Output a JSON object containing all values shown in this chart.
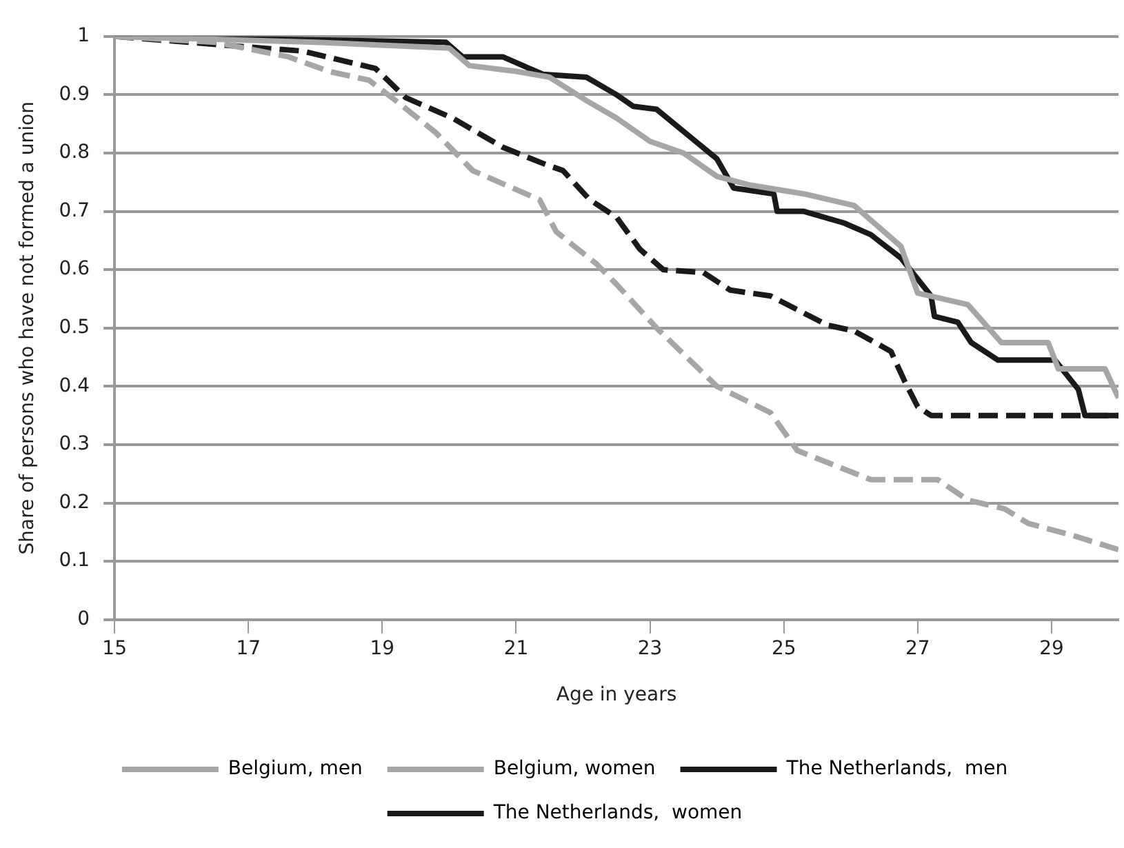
{
  "chart_data": {
    "type": "line",
    "xlabel": "Age in years",
    "ylabel": "Share of persons who have not formed a union",
    "xlim": [
      15,
      30
    ],
    "xticks": [
      15,
      17,
      19,
      21,
      23,
      25,
      27,
      29
    ],
    "ylim": [
      0,
      1
    ],
    "yticks": [
      0,
      0.1,
      0.2,
      0.3,
      0.4,
      0.5,
      0.6,
      0.7,
      0.8,
      0.9,
      1
    ],
    "grid": "y",
    "legend": "bottom",
    "marker": "none",
    "series": [
      {
        "name": "Belgium, men",
        "color": "#a6a6a6",
        "line_style": "solid",
        "x": [
          15,
          18,
          20,
          20.3,
          21,
          21.5,
          22.05,
          22.5,
          23,
          23.5,
          24,
          24.5,
          25.3,
          26.05,
          26.75,
          27,
          27.75,
          28.25,
          28.95,
          29.1,
          29.8,
          30
        ],
        "values": [
          1,
          0.99,
          0.98,
          0.95,
          0.94,
          0.93,
          0.89,
          0.86,
          0.82,
          0.8,
          0.76,
          0.745,
          0.73,
          0.71,
          0.64,
          0.56,
          0.54,
          0.475,
          0.475,
          0.43,
          0.43,
          0.38
        ]
      },
      {
        "name": "Belgium, women",
        "color": "#a6a6a6",
        "line_style": "dashed",
        "x": [
          15,
          16.5,
          17.6,
          18.2,
          18.8,
          19.2,
          19.8,
          20.35,
          20.85,
          21.35,
          21.6,
          22.2,
          22.5,
          23.1,
          24,
          24.8,
          25.2,
          26.3,
          27.3,
          27.75,
          28.3,
          28.65,
          29.3,
          30
        ],
        "values": [
          1,
          0.99,
          0.965,
          0.94,
          0.925,
          0.89,
          0.835,
          0.77,
          0.745,
          0.72,
          0.665,
          0.61,
          0.575,
          0.5,
          0.4,
          0.355,
          0.29,
          0.24,
          0.24,
          0.205,
          0.19,
          0.165,
          0.145,
          0.12
        ]
      },
      {
        "name": "The Netherlands,  men",
        "color": "#1a1a1a",
        "line_style": "solid",
        "x": [
          15,
          19.95,
          20.2,
          20.8,
          21.4,
          22.05,
          22.5,
          22.75,
          23.1,
          24,
          24.25,
          24.85,
          24.9,
          25.3,
          25.9,
          26.3,
          26.75,
          27.2,
          27.25,
          27.6,
          27.8,
          28.2,
          29.05,
          29.4,
          29.5,
          30
        ],
        "values": [
          1,
          0.99,
          0.965,
          0.965,
          0.935,
          0.93,
          0.9,
          0.88,
          0.875,
          0.79,
          0.74,
          0.73,
          0.7,
          0.7,
          0.68,
          0.66,
          0.62,
          0.555,
          0.52,
          0.51,
          0.475,
          0.445,
          0.445,
          0.395,
          0.35,
          0.35
        ]
      },
      {
        "name": "The Netherlands,  women",
        "color": "#1a1a1a",
        "line_style": "dashed",
        "x": [
          15,
          17.2,
          17.8,
          18.35,
          18.9,
          19.35,
          20.05,
          20.8,
          21.45,
          21.7,
          22.1,
          22.5,
          22.85,
          23.2,
          23.8,
          24.2,
          24.8,
          25.65,
          26.05,
          26.6,
          26.8,
          27,
          27.2,
          30
        ],
        "values": [
          1,
          0.98,
          0.975,
          0.96,
          0.945,
          0.895,
          0.86,
          0.81,
          0.78,
          0.77,
          0.72,
          0.69,
          0.635,
          0.6,
          0.595,
          0.565,
          0.555,
          0.505,
          0.495,
          0.46,
          0.41,
          0.365,
          0.35,
          0.35
        ]
      }
    ]
  }
}
